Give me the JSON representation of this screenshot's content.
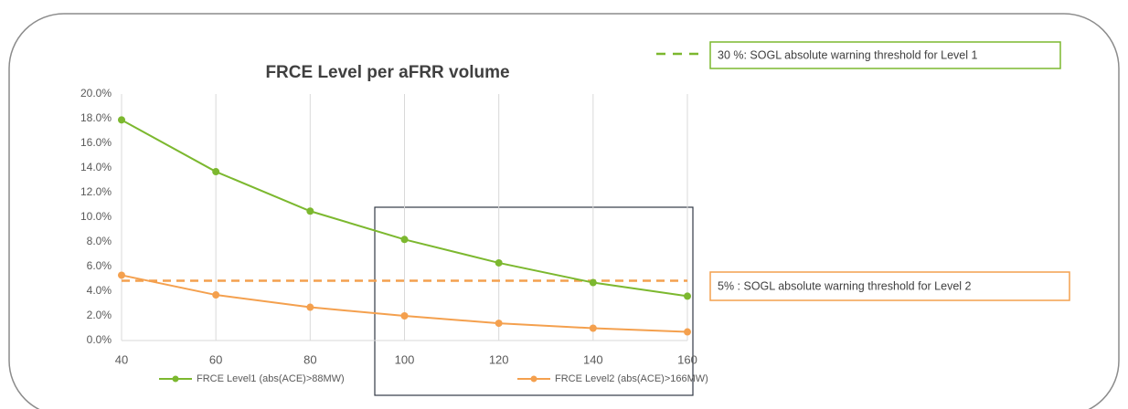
{
  "chart_data": {
    "type": "line",
    "title": "FRCE Level per aFRR volume",
    "x": [
      40,
      60,
      80,
      100,
      120,
      140,
      160
    ],
    "xlim": [
      40,
      160
    ],
    "xticks": [
      40,
      60,
      80,
      100,
      120,
      140,
      160
    ],
    "ylim": [
      0,
      20
    ],
    "yticks": [
      {
        "value": 0,
        "label": "0.0%"
      },
      {
        "value": 2,
        "label": "2.0%"
      },
      {
        "value": 4,
        "label": "4.0%"
      },
      {
        "value": 6,
        "label": "6.0%"
      },
      {
        "value": 8,
        "label": "8.0%"
      },
      {
        "value": 10,
        "label": "10.0%"
      },
      {
        "value": 12,
        "label": "12.0%"
      },
      {
        "value": 14,
        "label": "14.0%"
      },
      {
        "value": 16,
        "label": "16.0%"
      },
      {
        "value": 18,
        "label": "18.0%"
      },
      {
        "value": 20,
        "label": "20.0%"
      }
    ],
    "grid": true,
    "series": [
      {
        "name": "FRCE Level1 (abs(ACE)>88MW)",
        "color": "#7cb82f",
        "values": [
          17.9,
          13.7,
          10.5,
          8.2,
          6.3,
          4.7,
          3.6
        ]
      },
      {
        "name": "FRCE Level2 (abs(ACE)>166MW)",
        "color": "#f4a04e",
        "values": [
          5.3,
          3.7,
          2.7,
          2.0,
          1.4,
          1.0,
          0.7
        ]
      }
    ],
    "reference_lines": [
      {
        "value": 4.85,
        "color": "#f4a04e",
        "label": "5% : SOGL absolute warning threshold for Level 2"
      }
    ],
    "legend_notes": [
      {
        "color": "#7cb82f",
        "label": "30 %: SOGL absolute warning threshold for Level 1"
      }
    ]
  }
}
